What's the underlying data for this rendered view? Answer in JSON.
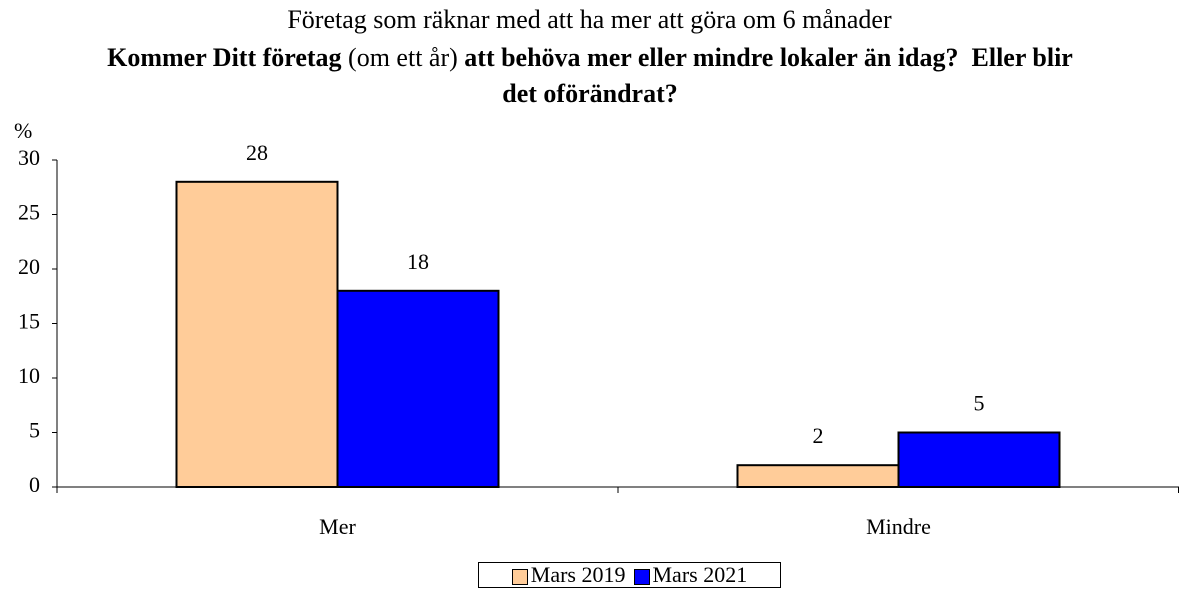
{
  "chart_data": {
    "type": "bar",
    "title": "Företag som räknar med att ha mer att göra om 6 månader",
    "subtitle_parts": [
      {
        "text": "Kommer Ditt företag",
        "bold": true
      },
      {
        "text": " (om ett år) ",
        "bold": false
      },
      {
        "text": "att behöva mer eller mindre lokaler än idag?  Eller blir det oförändrat?",
        "bold": true
      }
    ],
    "y_axis_label": "%",
    "categories": [
      "Mer",
      "Mindre"
    ],
    "series": [
      {
        "name": "Mars 2019",
        "color": "#FFCC99",
        "values": [
          28,
          2
        ]
      },
      {
        "name": "Mars 2021",
        "color": "#0000FF",
        "values": [
          18,
          5
        ]
      }
    ],
    "ylim": [
      0,
      30
    ],
    "yticks": [
      0,
      5,
      10,
      15,
      20,
      25,
      30
    ],
    "legend": "bottom",
    "grid": false
  }
}
